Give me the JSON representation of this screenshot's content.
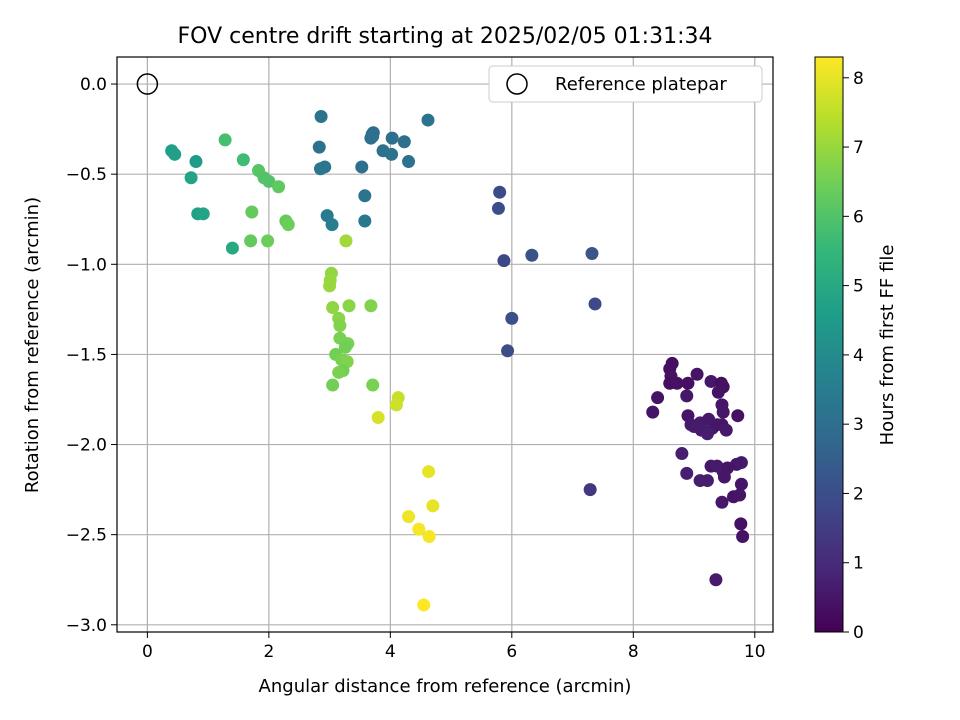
{
  "chart_data": {
    "type": "scatter",
    "title": "FOV centre drift starting at 2025/02/05 01:31:34",
    "xlabel": "Angular distance from reference (arcmin)",
    "ylabel": "Rotation from reference (arcmin)",
    "xlim": [
      -0.5,
      10.3
    ],
    "ylim": [
      -3.04,
      0.15
    ],
    "xticks": [
      0,
      2,
      4,
      6,
      8,
      10
    ],
    "xtick_labels": [
      "0",
      "2",
      "4",
      "6",
      "8",
      "10"
    ],
    "yticks": [
      0,
      -0.5,
      -1,
      -1.5,
      -2,
      -2.5,
      -3
    ],
    "ytick_labels": [
      "0.0",
      "−0.5",
      "−1.0",
      "−1.5",
      "−2.0",
      "−2.5",
      "−3.0"
    ],
    "grid": true,
    "legend": {
      "position": "top-right",
      "entries": [
        {
          "label": "Reference platepar",
          "marker": "hollow-circle"
        }
      ]
    },
    "reference_point": {
      "x": 0,
      "y": 0
    },
    "colorbar": {
      "label": "Hours from first FF file",
      "colormap": "viridis",
      "range": [
        0,
        8.3
      ],
      "ticks": [
        0,
        1,
        2,
        3,
        4,
        5,
        6,
        7,
        8
      ],
      "tick_labels": [
        "0",
        "1",
        "2",
        "3",
        "4",
        "5",
        "6",
        "7",
        "8"
      ]
    },
    "colormap_stops": [
      "#440154",
      "#482878",
      "#3e4989",
      "#31688e",
      "#26828e",
      "#1f9e89",
      "#35b779",
      "#6ece58",
      "#b5de2b",
      "#fde725"
    ],
    "points": [
      {
        "x": 8.64,
        "y": -1.55,
        "c": 0.3
      },
      {
        "x": 8.6,
        "y": -1.58,
        "c": 0.35
      },
      {
        "x": 8.62,
        "y": -1.62,
        "c": 0.4
      },
      {
        "x": 8.6,
        "y": -1.66,
        "c": 0.32
      },
      {
        "x": 8.72,
        "y": -1.66,
        "c": 0.38
      },
      {
        "x": 8.4,
        "y": -1.74,
        "c": 0.42
      },
      {
        "x": 8.32,
        "y": -1.82,
        "c": 0.45
      },
      {
        "x": 8.9,
        "y": -1.66,
        "c": 0.36
      },
      {
        "x": 9.05,
        "y": -1.61,
        "c": 0.44
      },
      {
        "x": 8.88,
        "y": -1.73,
        "c": 0.5
      },
      {
        "x": 9.28,
        "y": -1.65,
        "c": 0.55
      },
      {
        "x": 9.45,
        "y": -1.66,
        "c": 0.33
      },
      {
        "x": 9.48,
        "y": -1.68,
        "c": 0.37
      },
      {
        "x": 9.4,
        "y": -1.71,
        "c": 0.41
      },
      {
        "x": 9.46,
        "y": -1.78,
        "c": 0.48
      },
      {
        "x": 9.48,
        "y": -1.82,
        "c": 0.52
      },
      {
        "x": 9.72,
        "y": -1.84,
        "c": 0.4
      },
      {
        "x": 8.9,
        "y": -1.84,
        "c": 0.46
      },
      {
        "x": 8.95,
        "y": -1.89,
        "c": 0.58
      },
      {
        "x": 9.1,
        "y": -1.88,
        "c": 0.6
      },
      {
        "x": 9.12,
        "y": -1.92,
        "c": 0.62
      },
      {
        "x": 9.24,
        "y": -1.86,
        "c": 0.55
      },
      {
        "x": 9.3,
        "y": -1.91,
        "c": 0.64
      },
      {
        "x": 9.38,
        "y": -1.89,
        "c": 0.5
      },
      {
        "x": 9.46,
        "y": -1.89,
        "c": 0.53
      },
      {
        "x": 9.53,
        "y": -1.92,
        "c": 0.57
      },
      {
        "x": 9.22,
        "y": -1.94,
        "c": 0.66
      },
      {
        "x": 9.0,
        "y": -1.9,
        "c": 0.61
      },
      {
        "x": 8.8,
        "y": -2.05,
        "c": 0.7
      },
      {
        "x": 8.88,
        "y": -2.16,
        "c": 0.72
      },
      {
        "x": 9.28,
        "y": -2.12,
        "c": 0.54
      },
      {
        "x": 9.38,
        "y": -2.12,
        "c": 0.58
      },
      {
        "x": 9.48,
        "y": -2.15,
        "c": 0.62
      },
      {
        "x": 9.55,
        "y": -2.13,
        "c": 0.48
      },
      {
        "x": 9.7,
        "y": -2.11,
        "c": 0.5
      },
      {
        "x": 9.78,
        "y": -2.1,
        "c": 0.56
      },
      {
        "x": 9.1,
        "y": -2.2,
        "c": 0.66
      },
      {
        "x": 9.22,
        "y": -2.2,
        "c": 0.68
      },
      {
        "x": 9.5,
        "y": -2.18,
        "c": 0.52
      },
      {
        "x": 9.78,
        "y": -2.22,
        "c": 0.45
      },
      {
        "x": 9.65,
        "y": -2.29,
        "c": 0.42
      },
      {
        "x": 9.75,
        "y": -2.28,
        "c": 0.47
      },
      {
        "x": 9.46,
        "y": -2.32,
        "c": 0.55
      },
      {
        "x": 9.77,
        "y": -2.44,
        "c": 0.38
      },
      {
        "x": 9.8,
        "y": -2.51,
        "c": 0.4
      },
      {
        "x": 9.36,
        "y": -2.75,
        "c": 0.6
      },
      {
        "x": 7.29,
        "y": -2.25,
        "c": 1.3
      },
      {
        "x": 5.8,
        "y": -0.6,
        "c": 1.9
      },
      {
        "x": 5.78,
        "y": -0.69,
        "c": 2.0
      },
      {
        "x": 5.87,
        "y": -0.98,
        "c": 1.8
      },
      {
        "x": 6.33,
        "y": -0.95,
        "c": 2.1
      },
      {
        "x": 7.32,
        "y": -0.94,
        "c": 2.2
      },
      {
        "x": 7.37,
        "y": -1.22,
        "c": 1.85
      },
      {
        "x": 6.0,
        "y": -1.3,
        "c": 2.05
      },
      {
        "x": 5.93,
        "y": -1.48,
        "c": 1.95
      },
      {
        "x": 2.86,
        "y": -0.18,
        "c": 3.2
      },
      {
        "x": 2.83,
        "y": -0.35,
        "c": 3.1
      },
      {
        "x": 2.85,
        "y": -0.47,
        "c": 3.3
      },
      {
        "x": 2.92,
        "y": -0.46,
        "c": 3.25
      },
      {
        "x": 2.96,
        "y": -0.73,
        "c": 3.4
      },
      {
        "x": 3.04,
        "y": -0.78,
        "c": 3.5
      },
      {
        "x": 3.53,
        "y": -0.46,
        "c": 3.0
      },
      {
        "x": 3.58,
        "y": -0.62,
        "c": 3.15
      },
      {
        "x": 3.58,
        "y": -0.76,
        "c": 3.35
      },
      {
        "x": 3.72,
        "y": -0.27,
        "c": 2.9
      },
      {
        "x": 3.7,
        "y": -0.28,
        "c": 2.95
      },
      {
        "x": 3.68,
        "y": -0.3,
        "c": 3.0
      },
      {
        "x": 3.71,
        "y": -0.29,
        "c": 3.05
      },
      {
        "x": 3.88,
        "y": -0.37,
        "c": 3.1
      },
      {
        "x": 4.03,
        "y": -0.3,
        "c": 3.0
      },
      {
        "x": 4.02,
        "y": -0.39,
        "c": 3.2
      },
      {
        "x": 4.23,
        "y": -0.32,
        "c": 3.0
      },
      {
        "x": 4.3,
        "y": -0.43,
        "c": 3.1
      },
      {
        "x": 4.62,
        "y": -0.2,
        "c": 3.2
      },
      {
        "x": 0.4,
        "y": -0.37,
        "c": 4.6
      },
      {
        "x": 0.45,
        "y": -0.39,
        "c": 4.7
      },
      {
        "x": 0.8,
        "y": -0.43,
        "c": 4.5
      },
      {
        "x": 0.72,
        "y": -0.52,
        "c": 4.8
      },
      {
        "x": 0.83,
        "y": -0.72,
        "c": 4.7
      },
      {
        "x": 0.92,
        "y": -0.72,
        "c": 4.8
      },
      {
        "x": 1.4,
        "y": -0.91,
        "c": 5.0
      },
      {
        "x": 1.28,
        "y": -0.31,
        "c": 5.8
      },
      {
        "x": 1.58,
        "y": -0.42,
        "c": 5.7
      },
      {
        "x": 1.83,
        "y": -0.48,
        "c": 6.1
      },
      {
        "x": 1.92,
        "y": -0.52,
        "c": 6.0
      },
      {
        "x": 2.0,
        "y": -0.54,
        "c": 6.0
      },
      {
        "x": 2.16,
        "y": -0.57,
        "c": 6.2
      },
      {
        "x": 1.72,
        "y": -0.71,
        "c": 6.3
      },
      {
        "x": 1.7,
        "y": -0.87,
        "c": 6.3
      },
      {
        "x": 1.98,
        "y": -0.87,
        "c": 6.4
      },
      {
        "x": 2.28,
        "y": -0.76,
        "c": 6.3
      },
      {
        "x": 2.32,
        "y": -0.78,
        "c": 6.4
      },
      {
        "x": 3.27,
        "y": -0.87,
        "c": 7.1
      },
      {
        "x": 3.03,
        "y": -1.05,
        "c": 6.9
      },
      {
        "x": 3.01,
        "y": -1.09,
        "c": 7.0
      },
      {
        "x": 3.0,
        "y": -1.12,
        "c": 7.0
      },
      {
        "x": 3.05,
        "y": -1.24,
        "c": 6.9
      },
      {
        "x": 3.32,
        "y": -1.23,
        "c": 6.8
      },
      {
        "x": 3.68,
        "y": -1.23,
        "c": 6.7
      },
      {
        "x": 3.15,
        "y": -1.3,
        "c": 6.8
      },
      {
        "x": 3.17,
        "y": -1.34,
        "c": 6.7
      },
      {
        "x": 3.17,
        "y": -1.41,
        "c": 6.6
      },
      {
        "x": 3.3,
        "y": -1.44,
        "c": 6.6
      },
      {
        "x": 3.26,
        "y": -1.46,
        "c": 6.5
      },
      {
        "x": 3.1,
        "y": -1.5,
        "c": 6.5
      },
      {
        "x": 3.2,
        "y": -1.53,
        "c": 6.6
      },
      {
        "x": 3.29,
        "y": -1.54,
        "c": 6.7
      },
      {
        "x": 3.22,
        "y": -1.59,
        "c": 6.5
      },
      {
        "x": 3.15,
        "y": -1.6,
        "c": 6.6
      },
      {
        "x": 3.05,
        "y": -1.67,
        "c": 6.5
      },
      {
        "x": 3.71,
        "y": -1.67,
        "c": 6.6
      },
      {
        "x": 3.8,
        "y": -1.85,
        "c": 7.8
      },
      {
        "x": 4.13,
        "y": -1.74,
        "c": 7.6
      },
      {
        "x": 4.1,
        "y": -1.78,
        "c": 7.7
      },
      {
        "x": 4.63,
        "y": -2.15,
        "c": 8.0
      },
      {
        "x": 4.7,
        "y": -2.34,
        "c": 8.0
      },
      {
        "x": 4.3,
        "y": -2.4,
        "c": 8.1
      },
      {
        "x": 4.47,
        "y": -2.47,
        "c": 8.2
      },
      {
        "x": 4.64,
        "y": -2.51,
        "c": 8.2
      },
      {
        "x": 4.55,
        "y": -2.89,
        "c": 8.3
      }
    ]
  }
}
